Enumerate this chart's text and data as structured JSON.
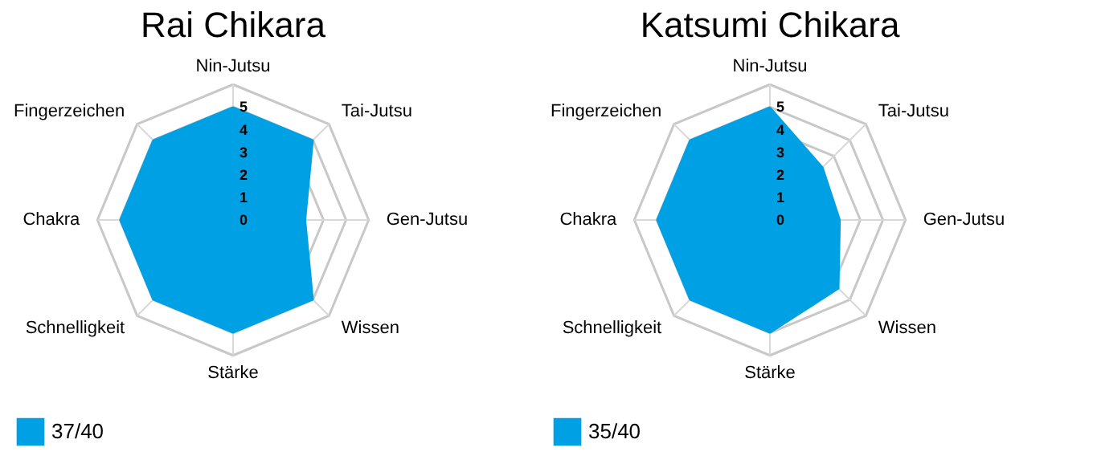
{
  "chart_data": [
    {
      "type": "radar",
      "title": "Rai Chikara",
      "categories": [
        "Nin-Jutsu",
        "Tai-Jutsu",
        "Gen-Jutsu",
        "Wissen",
        "Stärke",
        "Schnelligkeit",
        "Chakra",
        "Fingerzeichen"
      ],
      "series": [
        {
          "name": "37/40",
          "color": "#00a0e4",
          "values": [
            5,
            5,
            3.2,
            5,
            5,
            5,
            5,
            5
          ]
        }
      ],
      "ylim": [
        0,
        6
      ],
      "yticks": [
        0,
        1,
        2,
        3,
        4,
        5
      ],
      "grid": true,
      "legend": "bottom"
    },
    {
      "type": "radar",
      "title": "Katsumi Chikara",
      "categories": [
        "Nin-Jutsu",
        "Tai-Jutsu",
        "Gen-Jutsu",
        "Wissen",
        "Stärke",
        "Schnelligkeit",
        "Chakra",
        "Fingerzeichen"
      ],
      "series": [
        {
          "name": "35/40",
          "color": "#00a0e4",
          "values": [
            5,
            3.3,
            3.1,
            4.3,
            5,
            5,
            5,
            5
          ]
        }
      ],
      "ylim": [
        0,
        6
      ],
      "yticks": [
        0,
        1,
        2,
        3,
        4,
        5
      ],
      "grid": true,
      "legend": "bottom"
    }
  ]
}
